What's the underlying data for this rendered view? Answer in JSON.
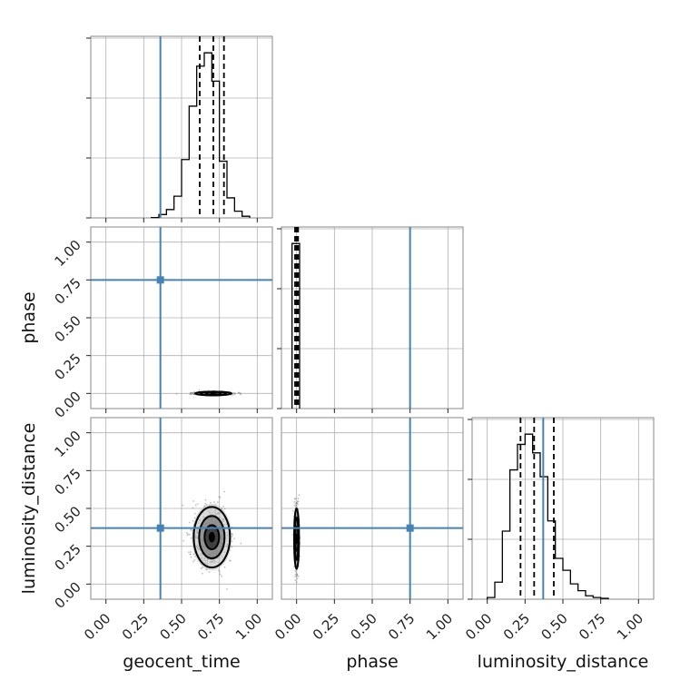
{
  "chart_data": {
    "type": "corner",
    "parameters": [
      "geocent_time",
      "phase",
      "luminosity_distance"
    ],
    "axis_range": [
      -0.1,
      1.1
    ],
    "ticks": [
      0.0,
      0.25,
      0.5,
      0.75,
      1.0
    ],
    "tick_labels": [
      "0.00",
      "0.25",
      "0.50",
      "0.75",
      "1.00"
    ],
    "grid": true,
    "truth_color": "#4682b4",
    "truths": {
      "geocent_time": 0.36,
      "phase": 0.75,
      "luminosity_distance": 0.37
    },
    "marginals": {
      "geocent_time": {
        "bin_edges": [
          0.3,
          0.35,
          0.4,
          0.45,
          0.5,
          0.55,
          0.6,
          0.65,
          0.7,
          0.75,
          0.8,
          0.85,
          0.9,
          0.95
        ],
        "counts": [
          0.002,
          0.02,
          0.05,
          0.13,
          0.35,
          0.67,
          0.91,
          0.99,
          0.82,
          0.34,
          0.12,
          0.04,
          0.01
        ],
        "quantiles": [
          0.62,
          0.71,
          0.78
        ]
      },
      "phase": {
        "bin_edges": [
          -0.03,
          0.0,
          0.02
        ],
        "counts": [
          1.0,
          1.0
        ],
        "quantiles": [
          -0.01,
          0.0,
          0.01
        ]
      },
      "luminosity_distance": {
        "bin_edges": [
          0.0,
          0.05,
          0.1,
          0.15,
          0.2,
          0.25,
          0.3,
          0.35,
          0.4,
          0.45,
          0.5,
          0.55,
          0.6,
          0.65,
          0.7,
          0.75,
          0.8
        ],
        "counts": [
          0.01,
          0.1,
          0.4,
          0.76,
          0.91,
          0.97,
          0.86,
          0.72,
          0.46,
          0.24,
          0.17,
          0.09,
          0.05,
          0.02,
          0.01,
          0.005
        ],
        "quantiles": [
          0.22,
          0.31,
          0.44
        ]
      }
    },
    "joint_2d": [
      {
        "x": "geocent_time",
        "y": "phase",
        "center": [
          0.71,
          0.0
        ],
        "spread": [
          0.06,
          0.005
        ]
      },
      {
        "x": "geocent_time",
        "y": "luminosity_distance",
        "center": [
          0.7,
          0.31
        ],
        "spread": [
          0.06,
          0.1
        ]
      },
      {
        "x": "phase",
        "y": "luminosity_distance",
        "center": [
          0.0,
          0.3
        ],
        "spread": [
          0.008,
          0.1
        ]
      }
    ]
  }
}
